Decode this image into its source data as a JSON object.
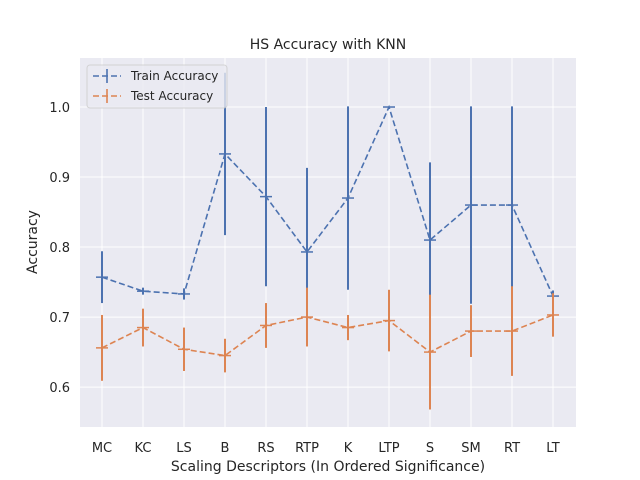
{
  "chart_data": {
    "type": "line",
    "title": "HS Accuracy with KNN",
    "xlabel": "Scaling Descriptors (In Ordered Significance)",
    "ylabel": "Accuracy",
    "categories": [
      "MC",
      "KC",
      "LS",
      "B",
      "RS",
      "RTP",
      "K",
      "LTP",
      "S",
      "SM",
      "RT",
      "LT"
    ],
    "ylim": [
      0.543,
      1.07
    ],
    "yticks": [
      "0.6",
      "0.7",
      "0.8",
      "0.9",
      "1.0"
    ],
    "grid": true,
    "legend_position": "top-left",
    "series": [
      {
        "name": "Train Accuracy",
        "color": "#4c72b0",
        "values": [
          0.757,
          0.737,
          0.733,
          0.933,
          0.872,
          0.793,
          0.87,
          1.0,
          0.81,
          0.86,
          0.86,
          0.73
        ],
        "errors": [
          0.037,
          0.005,
          0.008,
          0.116,
          0.128,
          0.12,
          0.131,
          0.0,
          0.111,
          0.141,
          0.141,
          0.008
        ]
      },
      {
        "name": "Test Accuracy",
        "color": "#dd8452",
        "values": [
          0.656,
          0.685,
          0.654,
          0.645,
          0.688,
          0.7,
          0.685,
          0.695,
          0.65,
          0.68,
          0.68,
          0.703
        ],
        "errors": [
          0.047,
          0.027,
          0.031,
          0.024,
          0.032,
          0.042,
          0.018,
          0.044,
          0.082,
          0.037,
          0.064,
          0.031
        ]
      }
    ]
  }
}
